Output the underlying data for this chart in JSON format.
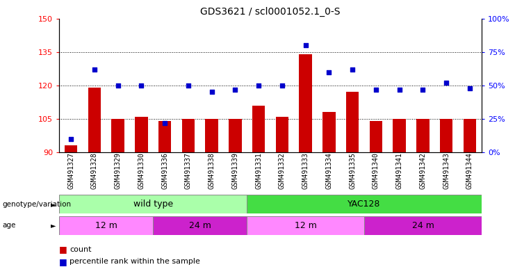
{
  "title": "GDS3621 / scl0001052.1_0-S",
  "samples": [
    "GSM491327",
    "GSM491328",
    "GSM491329",
    "GSM491330",
    "GSM491336",
    "GSM491337",
    "GSM491338",
    "GSM491339",
    "GSM491331",
    "GSM491332",
    "GSM491333",
    "GSM491334",
    "GSM491335",
    "GSM491340",
    "GSM491341",
    "GSM491342",
    "GSM491343",
    "GSM491344"
  ],
  "counts": [
    93,
    119,
    105,
    106,
    104,
    105,
    105,
    105,
    111,
    106,
    134,
    108,
    117,
    104,
    105,
    105,
    105,
    105
  ],
  "percentiles": [
    10,
    62,
    50,
    50,
    22,
    50,
    45,
    47,
    50,
    50,
    80,
    60,
    62,
    47,
    47,
    47,
    52,
    48
  ],
  "ylim_left": [
    90,
    150
  ],
  "ylim_right": [
    0,
    100
  ],
  "yticks_left": [
    90,
    105,
    120,
    135,
    150
  ],
  "yticks_right": [
    0,
    25,
    50,
    75,
    100
  ],
  "bar_color": "#cc0000",
  "dot_color": "#0000cc",
  "bg_color": "#ffffff",
  "genotype_wt_color": "#aaffaa",
  "genotype_yac_color": "#44dd44",
  "age_light_color": "#ff88ff",
  "age_dark_color": "#cc22cc",
  "genotype_labels": [
    "wild type",
    "YAC128"
  ],
  "age_labels": [
    "12 m",
    "24 m",
    "12 m",
    "24 m"
  ],
  "wt_count": 8,
  "yac_count": 10,
  "wt_12m_count": 4,
  "wt_24m_count": 4,
  "yac_12m_count": 5,
  "yac_24m_count": 5,
  "gridlines": [
    105,
    120,
    135
  ]
}
